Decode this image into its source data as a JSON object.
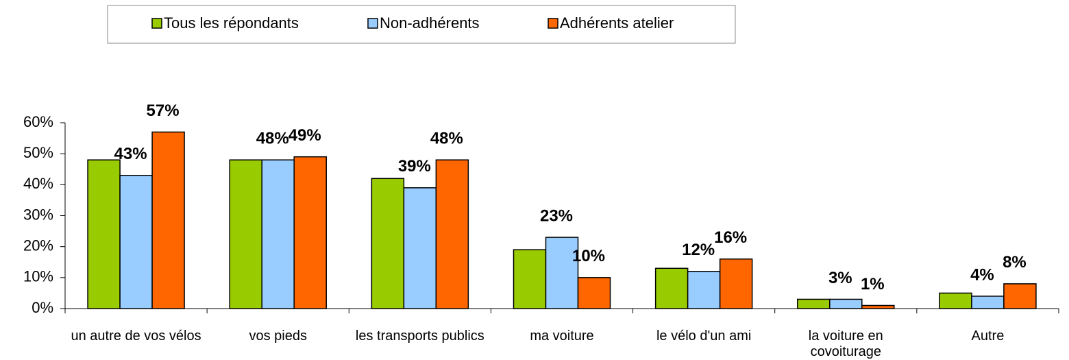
{
  "chart_data": {
    "type": "bar",
    "categories": [
      "un autre de vos vélos",
      "vos pieds",
      "les transports publics",
      "ma voiture",
      "le vélo d'un ami",
      "la voiture en covoiturage",
      "Autre"
    ],
    "series": [
      {
        "name": "Tous les répondants",
        "color": "#99cc00",
        "values": [
          48,
          48,
          42,
          19,
          13,
          3,
          5
        ]
      },
      {
        "name": "Non-adhérents",
        "color": "#99ccff",
        "values": [
          43,
          48,
          39,
          23,
          12,
          3,
          4
        ],
        "value_labels": [
          "43%",
          "48%",
          "39%",
          "23%",
          "12%",
          "3%",
          "4%"
        ]
      },
      {
        "name": "Adhérents atelier",
        "color": "#ff6600",
        "values": [
          57,
          49,
          48,
          10,
          16,
          1,
          8
        ],
        "value_labels": [
          "57%",
          "49%",
          "48%",
          "10%",
          "16%",
          "1%",
          "8%"
        ]
      }
    ],
    "ylim": [
      0,
      60
    ],
    "yticks": [
      {
        "value": 0,
        "label": "0%"
      },
      {
        "value": 10,
        "label": "10%"
      },
      {
        "value": 20,
        "label": "20%"
      },
      {
        "value": 30,
        "label": "30%"
      },
      {
        "value": 40,
        "label": "40%"
      },
      {
        "value": 50,
        "label": "50%"
      },
      {
        "value": 60,
        "label": "60%"
      }
    ],
    "legend": "top"
  }
}
